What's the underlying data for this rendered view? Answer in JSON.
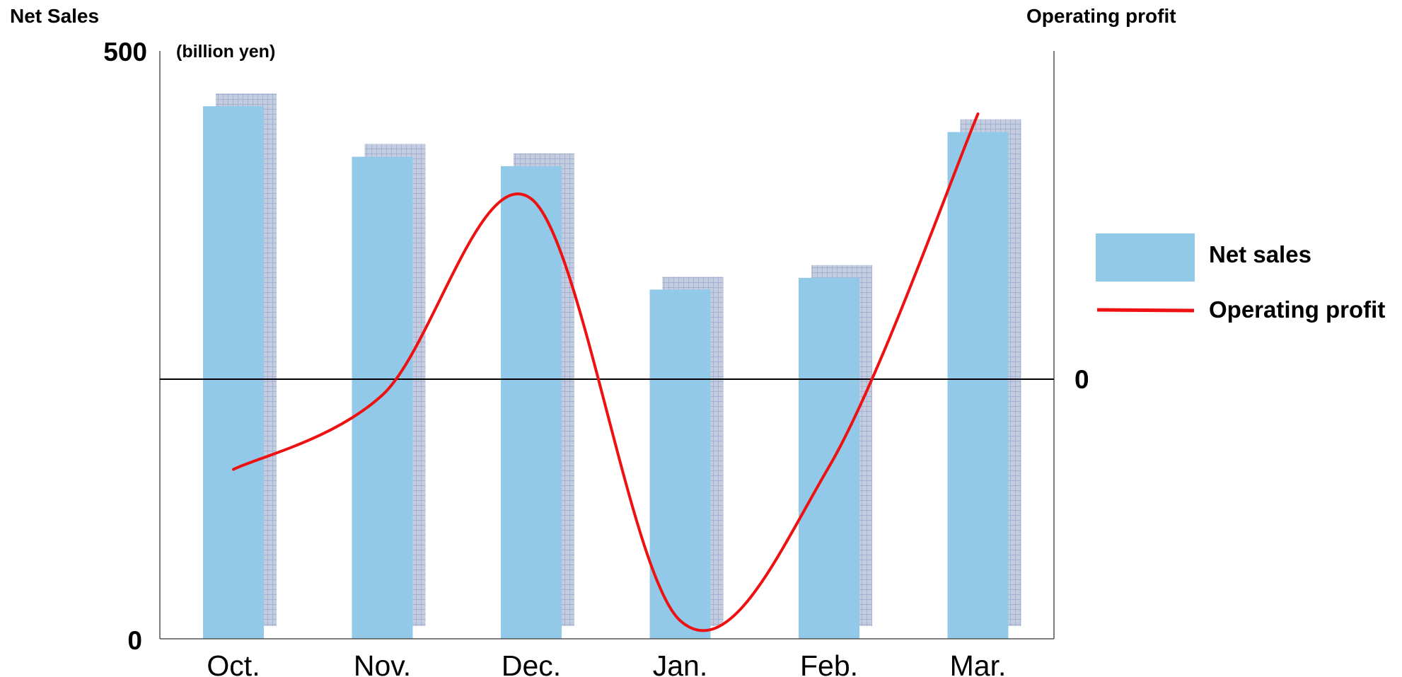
{
  "chart_data": {
    "type": "bar+line",
    "categories": [
      "Oct.",
      "Nov.",
      "Dec.",
      "Jan.",
      "Feb.",
      "Mar."
    ],
    "left_axis": {
      "title": "Net Sales",
      "unit": "(billion yen)",
      "ticks": [
        "500",
        "0"
      ],
      "ylim": [
        0,
        500
      ]
    },
    "right_axis": {
      "title": "Operating profit",
      "ticks": [
        "0"
      ]
    },
    "series": [
      {
        "name": "Net sales",
        "type": "bar",
        "values": [
          453,
          410,
          402,
          297,
          307,
          431
        ]
      },
      {
        "name": "Operating profit",
        "type": "line",
        "values": [
          -0.34,
          -0.06,
          0.68,
          -0.91,
          -0.33,
          1.0
        ]
      }
    ],
    "legend": {
      "placement": "right"
    },
    "colors": {
      "bar": "#93c9e8",
      "bar_shadow": "#c4cde0",
      "shadow_grid": "#9aa8cc",
      "line": "#ee1111",
      "axis": "#000000"
    }
  }
}
